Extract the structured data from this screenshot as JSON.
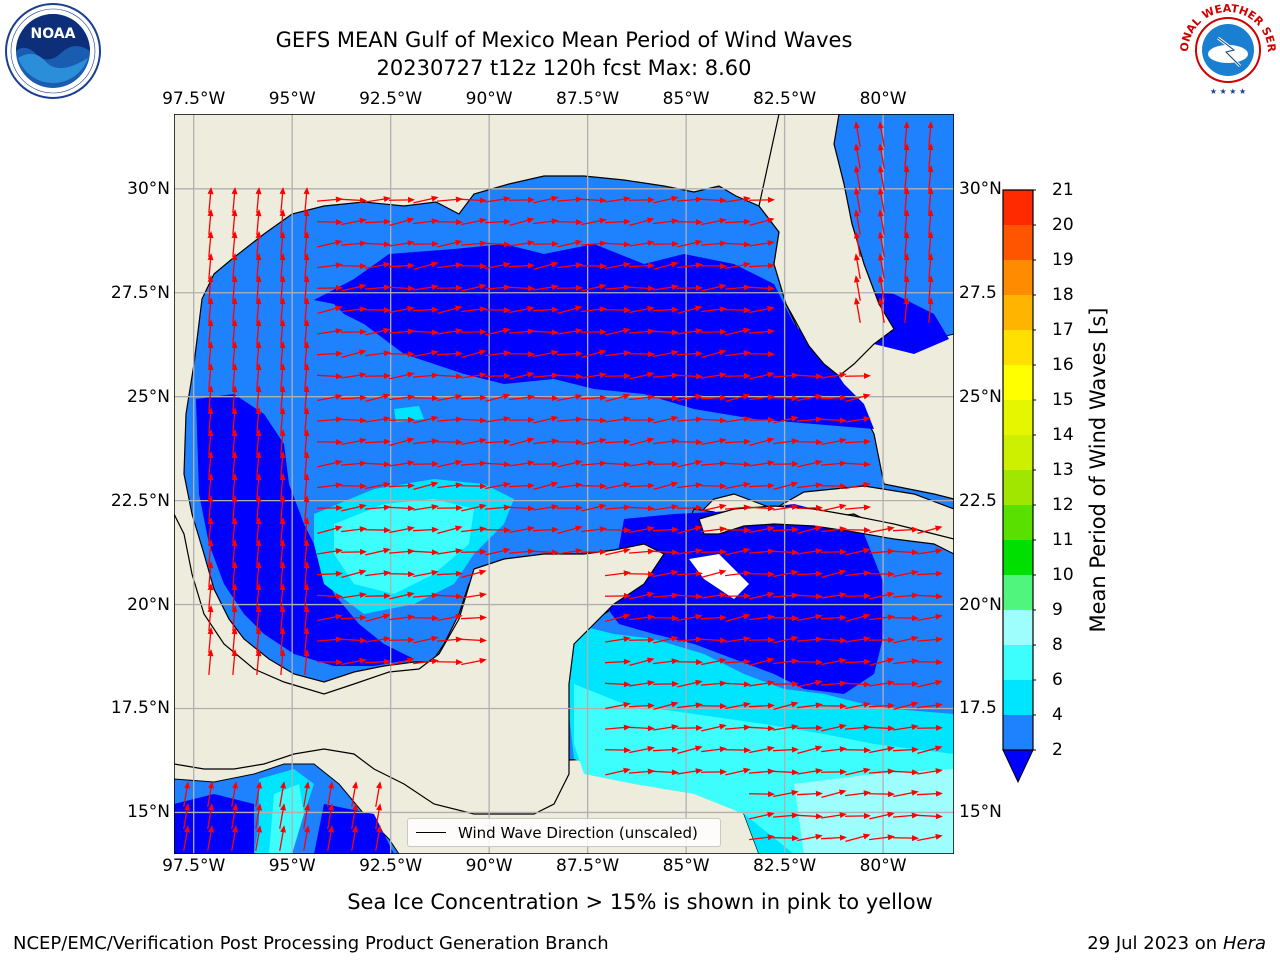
{
  "title": {
    "line1": "GEFS MEAN Gulf of Mexico Mean Period of Wind Waves",
    "line2": "20230727 t12z 120h fcst   Max: 8.60"
  },
  "logos": {
    "left_name": "noaa-logo",
    "left_text": "NOAA",
    "right_name": "national-weather-service-logo",
    "right_text": "NATIONAL WEATHER SERVICE"
  },
  "map": {
    "lon_range": [
      -98,
      -78.2
    ],
    "lat_range": [
      14,
      31.8
    ],
    "ocean_color": "#0000ff",
    "land_color": "#eeecdc",
    "grid_color": "#b0b0b0",
    "arrow_color": "#ff0000",
    "x_ticks": [
      "97.5°W",
      "95°W",
      "92.5°W",
      "90°W",
      "87.5°W",
      "85°W",
      "82.5°W",
      "80°W"
    ],
    "y_ticks": [
      "30°N",
      "27.5°N",
      "25°N",
      "22.5°N",
      "20°N",
      "17.5°N",
      "15°N"
    ],
    "y_ticks_right": [
      "30°N",
      "27.5",
      "25°N",
      "22.5",
      "20°N",
      "17.5",
      "15°N"
    ]
  },
  "legend": {
    "label": "Wind Wave Direction (unscaled)"
  },
  "colorbar": {
    "label": "Mean Period of Wind Waves [s]",
    "ticks": [
      "2",
      "4",
      "6",
      "8",
      "9",
      "10",
      "11",
      "12",
      "13",
      "14",
      "15",
      "16",
      "17",
      "18",
      "19",
      "20",
      "21"
    ],
    "colors": [
      "#1e82ff",
      "#00e5ff",
      "#3dfdfd",
      "#9efdfd",
      "#4ff57c",
      "#00e000",
      "#5ae000",
      "#a0e600",
      "#cdf000",
      "#e6f500",
      "#ffff00",
      "#ffe000",
      "#ffb400",
      "#ff8c00",
      "#ff5500",
      "#ff2a00"
    ],
    "extend_color": "#0000ff"
  },
  "note": "Sea Ice Concentration > 15% is shown in pink to yellow",
  "footer": {
    "left": "NCEP/EMC/Verification Post Processing Product Generation Branch",
    "right_date": "29 Jul 2023 on ",
    "right_host": "Hera"
  }
}
